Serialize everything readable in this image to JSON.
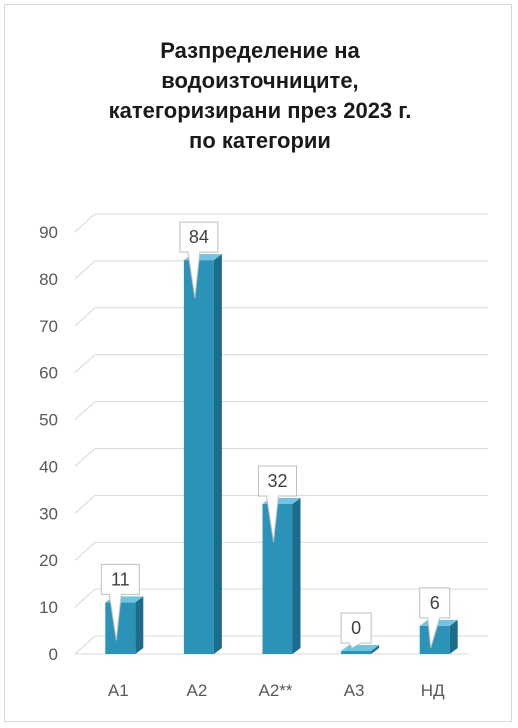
{
  "chart_data": {
    "type": "bar",
    "title_lines": [
      "Разпределение на",
      "водоизточниците,",
      "категоризирани през 2023 г.",
      "по категории"
    ],
    "categories": [
      "A1",
      "A2",
      "A2**",
      "A3",
      "НД"
    ],
    "values": [
      11,
      84,
      32,
      0,
      6
    ],
    "ylim": [
      0,
      90
    ],
    "yticks": [
      0,
      10,
      20,
      30,
      40,
      50,
      60,
      70,
      80,
      90
    ],
    "grid": true,
    "legend": "none",
    "bar_style": "3d",
    "colors": {
      "bar_front": "#2b93b8",
      "bar_side": "#1b6d8b",
      "bar_top": "#6fc4e0",
      "grid": "#d9d9d9",
      "axis_text": "#595959"
    }
  }
}
